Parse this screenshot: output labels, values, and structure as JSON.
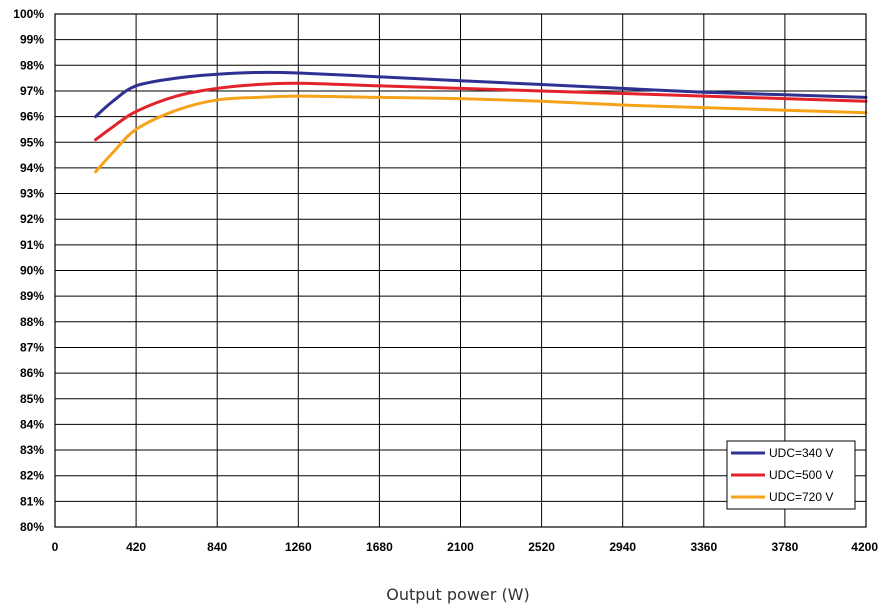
{
  "chart_data": {
    "type": "line",
    "title": "",
    "xlabel": "Output power (W)",
    "ylabel": "",
    "xlim": [
      0,
      4200
    ],
    "ylim": [
      80,
      100
    ],
    "grid": true,
    "legend_position": "bottom-right",
    "x_ticks": [
      "0",
      "420",
      "840",
      "1260",
      "1680",
      "2100",
      "2520",
      "2940",
      "3360",
      "3780",
      "4200"
    ],
    "y_ticks": [
      "80%",
      "81%",
      "82%",
      "83%",
      "84%",
      "85%",
      "86%",
      "87%",
      "88%",
      "89%",
      "90%",
      "91%",
      "92%",
      "93%",
      "94%",
      "95%",
      "96%",
      "97%",
      "98%",
      "99%",
      "100%"
    ],
    "series": [
      {
        "name": "UDC=340 V",
        "color": "#2e3192",
        "points": [
          [
            210,
            96.0
          ],
          [
            300,
            96.6
          ],
          [
            420,
            97.2
          ],
          [
            630,
            97.5
          ],
          [
            840,
            97.65
          ],
          [
            1050,
            97.72
          ],
          [
            1260,
            97.7
          ],
          [
            1680,
            97.55
          ],
          [
            2100,
            97.4
          ],
          [
            2520,
            97.25
          ],
          [
            2940,
            97.1
          ],
          [
            3360,
            96.95
          ],
          [
            3780,
            96.85
          ],
          [
            4200,
            96.75
          ]
        ]
      },
      {
        "name": "UDC=500 V",
        "color": "#e3232c",
        "points": [
          [
            210,
            95.1
          ],
          [
            300,
            95.6
          ],
          [
            420,
            96.2
          ],
          [
            630,
            96.8
          ],
          [
            840,
            97.1
          ],
          [
            1050,
            97.25
          ],
          [
            1260,
            97.3
          ],
          [
            1680,
            97.2
          ],
          [
            2100,
            97.1
          ],
          [
            2520,
            97.0
          ],
          [
            2940,
            96.9
          ],
          [
            3360,
            96.8
          ],
          [
            3780,
            96.7
          ],
          [
            4200,
            96.6
          ]
        ]
      },
      {
        "name": "UDC=720 V",
        "color": "#f7a21b",
        "points": [
          [
            210,
            93.85
          ],
          [
            300,
            94.6
          ],
          [
            420,
            95.5
          ],
          [
            630,
            96.25
          ],
          [
            840,
            96.65
          ],
          [
            1050,
            96.75
          ],
          [
            1260,
            96.8
          ],
          [
            1680,
            96.75
          ],
          [
            2100,
            96.7
          ],
          [
            2520,
            96.6
          ],
          [
            2940,
            96.45
          ],
          [
            3360,
            96.35
          ],
          [
            3780,
            96.25
          ],
          [
            4200,
            96.15
          ]
        ]
      }
    ]
  }
}
